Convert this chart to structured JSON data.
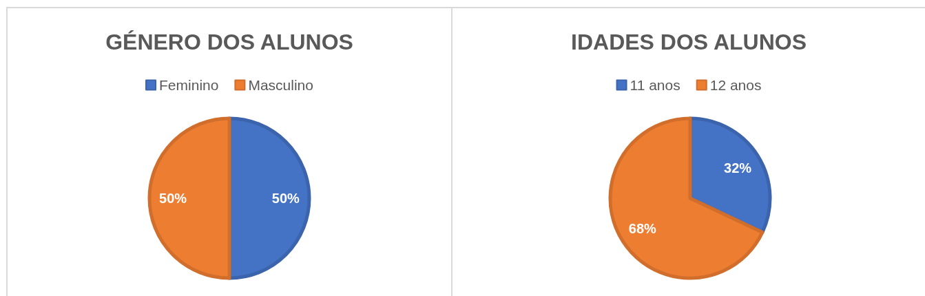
{
  "chart_data": [
    {
      "type": "pie",
      "title": "GÉNERO DOS ALUNOS",
      "categories": [
        "Feminino",
        "Masculino"
      ],
      "values": [
        50,
        50
      ],
      "colors": [
        "#4472c4",
        "#ed7d31"
      ],
      "value_labels": [
        "50%",
        "50%"
      ],
      "legend": "top"
    },
    {
      "type": "pie",
      "title": "IDADES DOS ALUNOS",
      "categories": [
        "11 anos",
        "12 anos"
      ],
      "values": [
        32,
        68
      ],
      "colors": [
        "#4472c4",
        "#ed7d31"
      ],
      "value_labels": [
        "32%",
        "68%"
      ],
      "legend": "top"
    }
  ]
}
